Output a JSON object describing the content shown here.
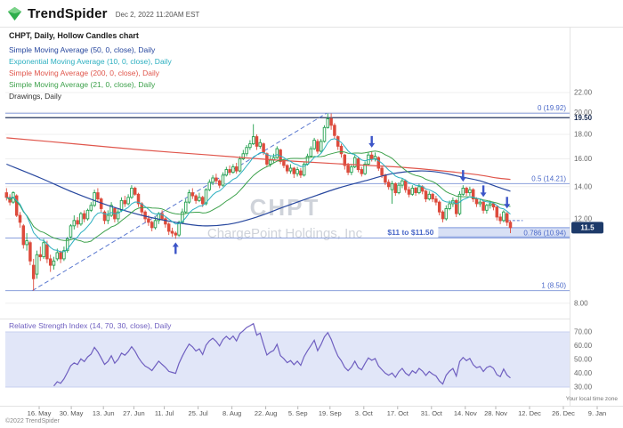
{
  "header": {
    "brand_bold": "Trend",
    "brand_light": "Spider",
    "timestamp": "Dec 2, 2022 11:20AM EST"
  },
  "chart_title": "CHPT, Daily, Hollow Candles chart",
  "legends": [
    {
      "label": "Simple Moving Average (50, 0, close), Daily",
      "color": "#27479e"
    },
    {
      "label": "Exponential Moving Average (10, 0, close), Daily",
      "color": "#2bafc0"
    },
    {
      "label": "Simple Moving Average (200, 0, close), Daily",
      "color": "#e0564c"
    },
    {
      "label": "Simple Moving Average (21, 0, close), Daily",
      "color": "#3da14b"
    },
    {
      "label": "Drawings, Daily",
      "color": "#333333"
    }
  ],
  "footer": {
    "copyright": "©2022 TrendSpider",
    "timezone_note": "Your local time zone"
  },
  "chart_data": {
    "type": "candlestick",
    "symbol": "CHPT",
    "watermark_line1": "CHPT",
    "watermark_line2": "ChargePoint Holdings, Inc",
    "price_axis_labels": [
      "22.00",
      "20.00",
      "18.00",
      "16.00",
      "14.00",
      "12.00",
      "8.00"
    ],
    "alert_line": {
      "label": "19.50",
      "value": 19.5
    },
    "last_price_badge": "11.5",
    "fib_levels": [
      {
        "label": "0 (19.92)",
        "value": 19.92
      },
      {
        "label": "0.5 (14.21)",
        "value": 14.21
      },
      {
        "label": "0.786 (10.94)",
        "value": 10.94
      },
      {
        "label": "1 (8.50)",
        "value": 8.5
      }
    ],
    "zone": {
      "label": "$11 to $11.50",
      "from": 11.0,
      "to": 11.5,
      "start_bar": 128
    },
    "trendline": {
      "from_bar": 8,
      "from_price": 8.5,
      "to_bar": 95,
      "to_price": 19.92
    },
    "drawing_segment": {
      "from_bar": 146,
      "to_bar": 153,
      "price": 11.9
    },
    "markers": [
      {
        "bar": 50,
        "dir": "up"
      },
      {
        "bar": 108,
        "dir": "down"
      },
      {
        "bar": 135,
        "dir": "down"
      },
      {
        "bar": 141,
        "dir": "down"
      },
      {
        "bar": 148,
        "dir": "down"
      }
    ],
    "x_ticks": [
      [
        "16. May",
        10
      ],
      [
        "30. May",
        19.5
      ],
      [
        "13. Jun",
        29
      ],
      [
        "27. Jun",
        38
      ],
      [
        "11. Jul",
        47
      ],
      [
        "25. Jul",
        57
      ],
      [
        "8. Aug",
        67
      ],
      [
        "22. Aug",
        77
      ],
      [
        "5. Sep",
        86.5
      ],
      [
        "19. Sep",
        96
      ],
      [
        "3. Oct",
        106
      ],
      [
        "17. Oct",
        116
      ],
      [
        "31. Oct",
        126
      ],
      [
        "14. Nov",
        136
      ],
      [
        "28. Nov",
        145
      ],
      [
        "12. Dec",
        155
      ],
      [
        "26. Dec",
        165
      ],
      [
        "9. Jan",
        175
      ]
    ],
    "candles": [
      [
        13.6,
        13.9,
        13.1,
        13.3
      ],
      [
        13.3,
        13.5,
        12.8,
        13.0
      ],
      [
        13.0,
        13.7,
        12.9,
        13.6
      ],
      [
        13.4,
        13.5,
        12.1,
        12.2
      ],
      [
        12.2,
        12.4,
        11.5,
        11.8
      ],
      [
        11.6,
        11.7,
        10.4,
        10.6
      ],
      [
        10.6,
        11.2,
        10.3,
        10.8
      ],
      [
        10.7,
        10.8,
        9.6,
        9.8
      ],
      [
        9.6,
        9.9,
        8.5,
        9.0
      ],
      [
        9.2,
        10.3,
        9.0,
        10.1
      ],
      [
        10.1,
        10.5,
        9.8,
        10.0
      ],
      [
        10.0,
        10.9,
        9.9,
        10.7
      ],
      [
        10.6,
        10.8,
        9.7,
        9.9
      ],
      [
        9.9,
        10.1,
        9.3,
        9.6
      ],
      [
        9.6,
        10.0,
        9.4,
        9.8
      ],
      [
        9.9,
        10.4,
        9.8,
        10.2
      ],
      [
        10.2,
        10.3,
        9.7,
        9.9
      ],
      [
        9.9,
        10.5,
        9.8,
        10.3
      ],
      [
        10.3,
        11.0,
        10.2,
        10.9
      ],
      [
        11.0,
        11.7,
        10.9,
        11.6
      ],
      [
        11.6,
        12.2,
        11.4,
        11.9
      ],
      [
        11.9,
        12.1,
        11.5,
        11.7
      ],
      [
        11.7,
        12.4,
        11.6,
        12.3
      ],
      [
        12.3,
        12.5,
        11.8,
        12.0
      ],
      [
        12.0,
        12.6,
        11.9,
        12.5
      ],
      [
        12.5,
        13.0,
        12.4,
        12.8
      ],
      [
        12.8,
        13.8,
        12.7,
        13.6
      ],
      [
        13.6,
        13.9,
        13.0,
        13.2
      ],
      [
        13.2,
        13.3,
        12.4,
        12.6
      ],
      [
        12.4,
        12.5,
        11.7,
        11.9
      ],
      [
        11.9,
        12.5,
        11.7,
        12.2
      ],
      [
        12.2,
        13.0,
        12.1,
        12.8
      ],
      [
        12.6,
        12.7,
        11.8,
        12.0
      ],
      [
        12.0,
        12.6,
        11.8,
        12.4
      ],
      [
        12.5,
        13.3,
        12.4,
        13.1
      ],
      [
        13.1,
        13.4,
        12.7,
        12.9
      ],
      [
        12.9,
        13.5,
        12.8,
        13.3
      ],
      [
        13.3,
        14.1,
        13.2,
        13.9
      ],
      [
        13.9,
        14.0,
        13.4,
        13.5
      ],
      [
        13.5,
        13.6,
        12.7,
        12.9
      ],
      [
        12.9,
        13.0,
        12.2,
        12.4
      ],
      [
        12.4,
        12.5,
        11.8,
        12.0
      ],
      [
        12.0,
        12.2,
        11.6,
        11.8
      ],
      [
        11.8,
        11.9,
        11.3,
        11.5
      ],
      [
        11.5,
        12.1,
        11.4,
        11.9
      ],
      [
        11.9,
        12.4,
        11.7,
        12.3
      ],
      [
        12.3,
        12.5,
        11.9,
        12.0
      ],
      [
        12.0,
        12.1,
        11.5,
        11.7
      ],
      [
        11.7,
        11.8,
        11.1,
        11.3
      ],
      [
        11.3,
        11.5,
        11.0,
        11.2
      ],
      [
        11.2,
        11.3,
        10.9,
        11.1
      ],
      [
        11.1,
        11.9,
        11.0,
        11.8
      ],
      [
        11.8,
        12.6,
        11.7,
        12.4
      ],
      [
        12.4,
        13.2,
        12.3,
        13.0
      ],
      [
        13.0,
        13.8,
        12.9,
        13.6
      ],
      [
        13.6,
        13.9,
        13.2,
        13.4
      ],
      [
        13.4,
        13.5,
        12.9,
        13.1
      ],
      [
        13.1,
        13.6,
        13.0,
        13.3
      ],
      [
        13.3,
        13.4,
        12.7,
        12.9
      ],
      [
        12.9,
        13.9,
        12.8,
        13.8
      ],
      [
        13.8,
        14.5,
        13.7,
        14.3
      ],
      [
        14.3,
        14.8,
        14.1,
        14.6
      ],
      [
        14.6,
        14.9,
        14.2,
        14.4
      ],
      [
        14.4,
        14.5,
        13.9,
        14.1
      ],
      [
        14.1,
        15.0,
        14.0,
        14.8
      ],
      [
        14.8,
        15.4,
        14.7,
        15.2
      ],
      [
        15.2,
        15.5,
        14.8,
        15.0
      ],
      [
        15.0,
        15.6,
        14.9,
        15.4
      ],
      [
        15.4,
        15.7,
        14.9,
        15.1
      ],
      [
        15.1,
        16.2,
        15.0,
        16.0
      ],
      [
        16.0,
        16.7,
        15.9,
        16.4
      ],
      [
        16.4,
        17.1,
        16.2,
        16.9
      ],
      [
        16.9,
        17.5,
        16.7,
        17.2
      ],
      [
        17.2,
        18.9,
        17.1,
        17.8
      ],
      [
        17.8,
        18.0,
        16.7,
        17.0
      ],
      [
        17.0,
        17.6,
        16.8,
        17.3
      ],
      [
        17.2,
        17.3,
        16.3,
        16.5
      ],
      [
        16.4,
        16.5,
        15.4,
        15.6
      ],
      [
        15.6,
        16.2,
        15.4,
        15.9
      ],
      [
        15.9,
        16.4,
        15.7,
        16.1
      ],
      [
        16.1,
        17.0,
        16.0,
        16.8
      ],
      [
        16.7,
        16.8,
        15.6,
        15.8
      ],
      [
        15.8,
        16.0,
        15.3,
        15.5
      ],
      [
        15.5,
        15.6,
        14.9,
        15.1
      ],
      [
        15.1,
        15.6,
        14.9,
        15.3
      ],
      [
        15.3,
        15.4,
        14.6,
        14.9
      ],
      [
        14.9,
        15.4,
        14.7,
        15.2
      ],
      [
        15.1,
        15.3,
        14.6,
        14.8
      ],
      [
        14.8,
        15.8,
        14.7,
        15.6
      ],
      [
        15.6,
        16.4,
        15.5,
        16.2
      ],
      [
        16.2,
        17.0,
        16.1,
        16.8
      ],
      [
        16.8,
        17.7,
        16.7,
        17.5
      ],
      [
        17.4,
        17.6,
        16.4,
        16.6
      ],
      [
        16.6,
        17.6,
        16.5,
        17.4
      ],
      [
        17.4,
        18.8,
        17.3,
        18.6
      ],
      [
        18.6,
        19.9,
        18.5,
        19.4
      ],
      [
        19.4,
        19.9,
        18.4,
        18.8
      ],
      [
        18.8,
        19.0,
        17.6,
        17.9
      ],
      [
        17.8,
        17.9,
        16.7,
        17.0
      ],
      [
        17.0,
        17.2,
        16.1,
        16.4
      ],
      [
        16.3,
        16.4,
        15.2,
        15.5
      ],
      [
        15.5,
        15.7,
        14.8,
        15.0
      ],
      [
        15.0,
        15.6,
        14.8,
        15.4
      ],
      [
        15.4,
        16.3,
        15.3,
        16.1
      ],
      [
        16.0,
        16.1,
        15.0,
        15.2
      ],
      [
        15.2,
        15.4,
        14.7,
        14.9
      ],
      [
        14.9,
        15.8,
        14.8,
        15.6
      ],
      [
        15.6,
        16.5,
        15.5,
        16.3
      ],
      [
        16.3,
        16.6,
        15.8,
        16.0
      ],
      [
        16.0,
        16.5,
        15.8,
        16.2
      ],
      [
        16.1,
        16.2,
        15.1,
        15.3
      ],
      [
        15.3,
        15.5,
        14.6,
        14.8
      ],
      [
        14.8,
        14.9,
        14.1,
        14.3
      ],
      [
        14.3,
        14.5,
        13.8,
        14.0
      ],
      [
        13.8,
        14.4,
        12.9,
        14.2
      ],
      [
        14.2,
        14.3,
        13.4,
        13.6
      ],
      [
        13.6,
        14.3,
        13.5,
        14.1
      ],
      [
        14.1,
        14.6,
        13.9,
        14.4
      ],
      [
        14.4,
        14.5,
        13.6,
        13.8
      ],
      [
        13.8,
        14.0,
        13.3,
        13.5
      ],
      [
        13.5,
        14.1,
        13.4,
        13.9
      ],
      [
        13.9,
        14.0,
        13.4,
        13.6
      ],
      [
        13.6,
        14.2,
        13.5,
        14.0
      ],
      [
        14.0,
        14.1,
        13.5,
        13.7
      ],
      [
        13.7,
        13.8,
        13.0,
        13.2
      ],
      [
        13.2,
        13.7,
        13.1,
        13.5
      ],
      [
        13.5,
        13.6,
        13.0,
        13.2
      ],
      [
        13.2,
        13.4,
        12.8,
        13.0
      ],
      [
        13.0,
        13.1,
        12.2,
        12.4
      ],
      [
        12.4,
        12.5,
        11.8,
        12.0
      ],
      [
        12.0,
        12.8,
        11.9,
        12.6
      ],
      [
        12.6,
        13.1,
        12.5,
        12.9
      ],
      [
        12.9,
        13.3,
        12.7,
        13.1
      ],
      [
        13.1,
        13.2,
        12.1,
        12.3
      ],
      [
        12.3,
        13.7,
        12.2,
        13.5
      ],
      [
        13.5,
        14.1,
        13.4,
        13.9
      ],
      [
        13.9,
        14.0,
        13.4,
        13.6
      ],
      [
        13.6,
        14.0,
        13.4,
        13.8
      ],
      [
        13.8,
        13.9,
        13.0,
        13.2
      ],
      [
        13.2,
        13.3,
        12.7,
        12.9
      ],
      [
        12.9,
        13.2,
        12.7,
        13.0
      ],
      [
        13.0,
        13.1,
        12.3,
        12.5
      ],
      [
        12.5,
        12.9,
        12.3,
        12.8
      ],
      [
        12.8,
        13.1,
        12.6,
        12.9
      ],
      [
        12.9,
        13.0,
        12.5,
        12.7
      ],
      [
        12.7,
        12.8,
        11.9,
        12.1
      ],
      [
        12.1,
        12.3,
        11.7,
        11.9
      ],
      [
        11.9,
        12.5,
        11.8,
        12.4
      ],
      [
        12.3,
        12.4,
        11.6,
        11.8
      ],
      [
        11.8,
        11.9,
        11.2,
        11.5
      ]
    ],
    "sma50_points": [
      [
        0,
        15.6
      ],
      [
        10,
        14.6
      ],
      [
        20,
        13.6
      ],
      [
        30,
        12.8
      ],
      [
        40,
        12.2
      ],
      [
        50,
        11.8
      ],
      [
        58,
        11.6
      ],
      [
        66,
        11.7
      ],
      [
        74,
        12.1
      ],
      [
        82,
        12.7
      ],
      [
        90,
        13.3
      ],
      [
        98,
        13.9
      ],
      [
        106,
        14.4
      ],
      [
        114,
        14.9
      ],
      [
        122,
        15.1
      ],
      [
        128,
        15.0
      ],
      [
        134,
        14.7
      ],
      [
        140,
        14.4
      ],
      [
        145,
        14.0
      ],
      [
        149,
        13.7
      ]
    ],
    "sma200_points": [
      [
        0,
        17.7
      ],
      [
        20,
        17.2
      ],
      [
        40,
        16.7
      ],
      [
        60,
        16.3
      ],
      [
        80,
        15.9
      ],
      [
        100,
        15.6
      ],
      [
        115,
        15.4
      ],
      [
        125,
        15.2
      ],
      [
        133,
        15.0
      ],
      [
        140,
        14.8
      ],
      [
        145,
        14.6
      ],
      [
        149,
        14.5
      ]
    ],
    "ema_period": 10,
    "sma_period": 21,
    "rsi": {
      "label": "Relative Strength Index (14, 70, 30, close), Daily",
      "period": 14,
      "upper": 70,
      "lower": 30,
      "axis_labels": [
        "70.00",
        "60.00",
        "50.00",
        "40.00",
        "30.00"
      ]
    },
    "colors": {
      "up": "#23a04f",
      "down": "#dd4b3c",
      "sma50": "#27479e",
      "ema10": "#2bafc0",
      "sma200": "#e0564c",
      "sma21": "#3da14b",
      "fib": "#8ba0dc",
      "fib_label": "#4a68c8",
      "drawing": "#5b79d0",
      "signal": "#3c55c8",
      "rsi": "#6f5fc0",
      "badge_bg": "#1d3a69",
      "zone": "#7d98dd"
    }
  }
}
